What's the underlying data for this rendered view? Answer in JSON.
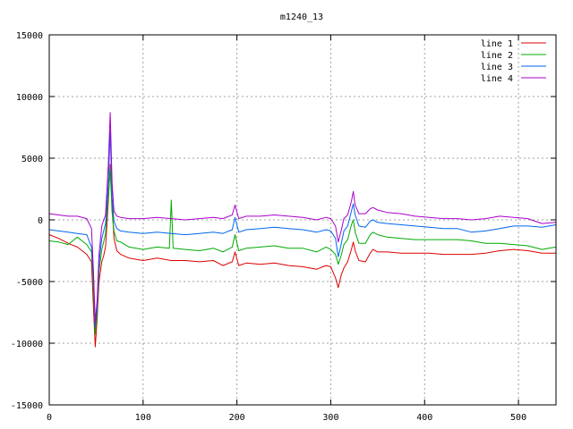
{
  "chart_data": {
    "type": "line",
    "title": "m1240_13",
    "xlabel": "",
    "ylabel": "",
    "xlim": [
      0,
      540
    ],
    "ylim": [
      -15000,
      15000
    ],
    "x_ticks": [
      0,
      100,
      200,
      300,
      400,
      500
    ],
    "y_ticks": [
      -15000,
      -10000,
      -5000,
      0,
      5000,
      10000,
      15000
    ],
    "grid": true,
    "legend_position": "top-right",
    "series": [
      {
        "name": "line 1",
        "color": "#dd0000",
        "points": [
          [
            0,
            -1200
          ],
          [
            10,
            -1500
          ],
          [
            20,
            -1900
          ],
          [
            30,
            -2200
          ],
          [
            40,
            -2800
          ],
          [
            45,
            -3400
          ],
          [
            47,
            -7000
          ],
          [
            49,
            -10300
          ],
          [
            51,
            -8000
          ],
          [
            53,
            -5000
          ],
          [
            56,
            -3400
          ],
          [
            58,
            -2900
          ],
          [
            60,
            -2200
          ],
          [
            63,
            1500
          ],
          [
            65,
            4500
          ],
          [
            67,
            1200
          ],
          [
            69,
            -1500
          ],
          [
            72,
            -2500
          ],
          [
            76,
            -2800
          ],
          [
            85,
            -3100
          ],
          [
            100,
            -3300
          ],
          [
            115,
            -3100
          ],
          [
            130,
            -3300
          ],
          [
            145,
            -3300
          ],
          [
            160,
            -3400
          ],
          [
            175,
            -3300
          ],
          [
            185,
            -3700
          ],
          [
            195,
            -3400
          ],
          [
            198,
            -2600
          ],
          [
            202,
            -3700
          ],
          [
            210,
            -3500
          ],
          [
            225,
            -3600
          ],
          [
            240,
            -3500
          ],
          [
            255,
            -3700
          ],
          [
            270,
            -3800
          ],
          [
            285,
            -4000
          ],
          [
            295,
            -3700
          ],
          [
            300,
            -3800
          ],
          [
            305,
            -4700
          ],
          [
            308,
            -5500
          ],
          [
            311,
            -4500
          ],
          [
            314,
            -3900
          ],
          [
            318,
            -3400
          ],
          [
            322,
            -2400
          ],
          [
            324,
            -1800
          ],
          [
            326,
            -2500
          ],
          [
            330,
            -3300
          ],
          [
            337,
            -3400
          ],
          [
            342,
            -2700
          ],
          [
            345,
            -2400
          ],
          [
            350,
            -2600
          ],
          [
            360,
            -2600
          ],
          [
            375,
            -2700
          ],
          [
            390,
            -2700
          ],
          [
            405,
            -2700
          ],
          [
            420,
            -2800
          ],
          [
            435,
            -2800
          ],
          [
            450,
            -2800
          ],
          [
            465,
            -2700
          ],
          [
            480,
            -2500
          ],
          [
            495,
            -2400
          ],
          [
            510,
            -2500
          ],
          [
            525,
            -2700
          ],
          [
            540,
            -2700
          ]
        ]
      },
      {
        "name": "line 2",
        "color": "#00aa00",
        "points": [
          [
            0,
            -1700
          ],
          [
            10,
            -1800
          ],
          [
            20,
            -2000
          ],
          [
            30,
            -1400
          ],
          [
            40,
            -2000
          ],
          [
            45,
            -2600
          ],
          [
            47,
            -5500
          ],
          [
            49,
            -9300
          ],
          [
            51,
            -7500
          ],
          [
            53,
            -4200
          ],
          [
            56,
            -2400
          ],
          [
            58,
            -1800
          ],
          [
            60,
            -1100
          ],
          [
            63,
            2000
          ],
          [
            65,
            4100
          ],
          [
            67,
            600
          ],
          [
            69,
            -900
          ],
          [
            72,
            -1700
          ],
          [
            76,
            -1800
          ],
          [
            85,
            -2200
          ],
          [
            100,
            -2400
          ],
          [
            115,
            -2200
          ],
          [
            128,
            -2300
          ],
          [
            130,
            1600
          ],
          [
            132,
            -2300
          ],
          [
            145,
            -2400
          ],
          [
            160,
            -2500
          ],
          [
            175,
            -2300
          ],
          [
            185,
            -2600
          ],
          [
            195,
            -2200
          ],
          [
            198,
            -1200
          ],
          [
            202,
            -2500
          ],
          [
            210,
            -2300
          ],
          [
            225,
            -2200
          ],
          [
            240,
            -2100
          ],
          [
            255,
            -2300
          ],
          [
            270,
            -2300
          ],
          [
            285,
            -2600
          ],
          [
            295,
            -2200
          ],
          [
            300,
            -2400
          ],
          [
            305,
            -2800
          ],
          [
            308,
            -3600
          ],
          [
            311,
            -2900
          ],
          [
            314,
            -2000
          ],
          [
            318,
            -1600
          ],
          [
            322,
            -400
          ],
          [
            324,
            0
          ],
          [
            326,
            -1000
          ],
          [
            330,
            -1900
          ],
          [
            337,
            -1900
          ],
          [
            342,
            -1200
          ],
          [
            345,
            -1000
          ],
          [
            350,
            -1200
          ],
          [
            360,
            -1400
          ],
          [
            375,
            -1500
          ],
          [
            390,
            -1600
          ],
          [
            405,
            -1600
          ],
          [
            420,
            -1600
          ],
          [
            435,
            -1600
          ],
          [
            450,
            -1700
          ],
          [
            465,
            -1900
          ],
          [
            480,
            -1900
          ],
          [
            495,
            -2000
          ],
          [
            510,
            -2100
          ],
          [
            525,
            -2400
          ],
          [
            540,
            -2200
          ]
        ]
      },
      {
        "name": "line 3",
        "color": "#0066ee",
        "points": [
          [
            0,
            -800
          ],
          [
            10,
            -900
          ],
          [
            20,
            -1000
          ],
          [
            30,
            -1100
          ],
          [
            40,
            -1200
          ],
          [
            45,
            -2200
          ],
          [
            47,
            -4500
          ],
          [
            49,
            -8700
          ],
          [
            51,
            -7000
          ],
          [
            53,
            -3500
          ],
          [
            56,
            -1500
          ],
          [
            58,
            -900
          ],
          [
            60,
            -300
          ],
          [
            63,
            3000
          ],
          [
            65,
            7200
          ],
          [
            67,
            1800
          ],
          [
            69,
            -100
          ],
          [
            72,
            -700
          ],
          [
            76,
            -900
          ],
          [
            85,
            -1000
          ],
          [
            100,
            -1100
          ],
          [
            115,
            -1000
          ],
          [
            130,
            -1100
          ],
          [
            145,
            -1200
          ],
          [
            160,
            -1100
          ],
          [
            175,
            -1000
          ],
          [
            185,
            -1100
          ],
          [
            195,
            -800
          ],
          [
            198,
            200
          ],
          [
            202,
            -1000
          ],
          [
            210,
            -800
          ],
          [
            225,
            -700
          ],
          [
            240,
            -600
          ],
          [
            255,
            -700
          ],
          [
            270,
            -800
          ],
          [
            285,
            -1000
          ],
          [
            295,
            -800
          ],
          [
            300,
            -900
          ],
          [
            305,
            -1500
          ],
          [
            308,
            -3000
          ],
          [
            311,
            -2000
          ],
          [
            314,
            -900
          ],
          [
            318,
            -500
          ],
          [
            322,
            700
          ],
          [
            324,
            1300
          ],
          [
            326,
            400
          ],
          [
            330,
            -500
          ],
          [
            337,
            -600
          ],
          [
            342,
            -100
          ],
          [
            345,
            0
          ],
          [
            350,
            -200
          ],
          [
            360,
            -300
          ],
          [
            375,
            -400
          ],
          [
            390,
            -500
          ],
          [
            405,
            -600
          ],
          [
            420,
            -700
          ],
          [
            435,
            -700
          ],
          [
            450,
            -1000
          ],
          [
            465,
            -900
          ],
          [
            480,
            -700
          ],
          [
            495,
            -500
          ],
          [
            510,
            -500
          ],
          [
            525,
            -600
          ],
          [
            540,
            -400
          ]
        ]
      },
      {
        "name": "line 4",
        "color": "#aa00cc",
        "points": [
          [
            0,
            500
          ],
          [
            10,
            400
          ],
          [
            20,
            300
          ],
          [
            30,
            300
          ],
          [
            40,
            100
          ],
          [
            45,
            -700
          ],
          [
            47,
            -4000
          ],
          [
            49,
            -8300
          ],
          [
            51,
            -6500
          ],
          [
            53,
            -2800
          ],
          [
            56,
            -500
          ],
          [
            58,
            0
          ],
          [
            60,
            400
          ],
          [
            63,
            4500
          ],
          [
            65,
            8700
          ],
          [
            67,
            3000
          ],
          [
            69,
            700
          ],
          [
            72,
            300
          ],
          [
            76,
            200
          ],
          [
            85,
            100
          ],
          [
            100,
            100
          ],
          [
            115,
            200
          ],
          [
            130,
            100
          ],
          [
            145,
            0
          ],
          [
            160,
            100
          ],
          [
            175,
            200
          ],
          [
            185,
            100
          ],
          [
            195,
            400
          ],
          [
            198,
            1200
          ],
          [
            202,
            100
          ],
          [
            210,
            300
          ],
          [
            225,
            300
          ],
          [
            240,
            400
          ],
          [
            255,
            300
          ],
          [
            270,
            200
          ],
          [
            285,
            0
          ],
          [
            295,
            200
          ],
          [
            300,
            100
          ],
          [
            305,
            -500
          ],
          [
            308,
            -1800
          ],
          [
            311,
            -900
          ],
          [
            314,
            100
          ],
          [
            318,
            400
          ],
          [
            322,
            1500
          ],
          [
            324,
            2300
          ],
          [
            326,
            1200
          ],
          [
            330,
            500
          ],
          [
            337,
            500
          ],
          [
            342,
            900
          ],
          [
            345,
            1000
          ],
          [
            350,
            800
          ],
          [
            360,
            600
          ],
          [
            375,
            500
          ],
          [
            390,
            300
          ],
          [
            405,
            200
          ],
          [
            420,
            100
          ],
          [
            435,
            100
          ],
          [
            450,
            0
          ],
          [
            465,
            100
          ],
          [
            480,
            300
          ],
          [
            495,
            200
          ],
          [
            510,
            100
          ],
          [
            525,
            -300
          ],
          [
            540,
            -200
          ]
        ]
      }
    ]
  }
}
